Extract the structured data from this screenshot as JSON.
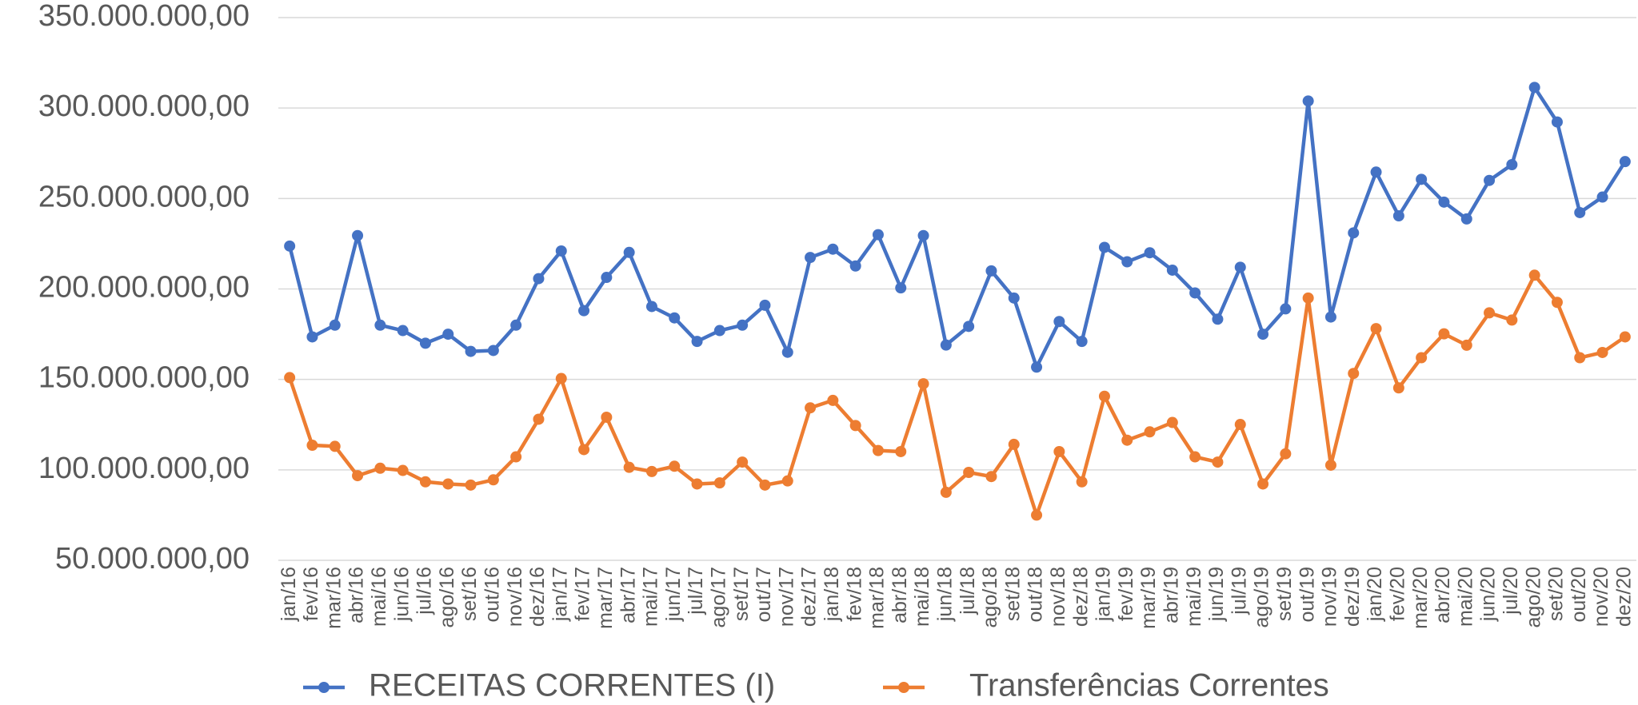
{
  "chart_data": {
    "type": "line",
    "categories": [
      "jan/16",
      "fev/16",
      "mar/16",
      "abr/16",
      "mai/16",
      "jun/16",
      "jul/16",
      "ago/16",
      "set/16",
      "out/16",
      "nov/16",
      "dez/16",
      "jan/17",
      "fev/17",
      "mar/17",
      "abr/17",
      "mai/17",
      "jun/17",
      "jul/17",
      "ago/17",
      "set/17",
      "out/17",
      "nov/17",
      "dez/17",
      "jan/18",
      "fev/18",
      "mar/18",
      "abr/18",
      "mai/18",
      "jun/18",
      "jul/18",
      "ago/18",
      "set/18",
      "out/18",
      "nov/18",
      "dez/18",
      "jan/19",
      "fev/19",
      "mar/19",
      "abr/19",
      "mai/19",
      "jun/19",
      "jul/19",
      "ago/19",
      "set/19",
      "out/19",
      "nov/19",
      "dez/19",
      "jan/20",
      "fev/20",
      "mar/20",
      "abr/20",
      "mai/20",
      "jun/20",
      "jul/20",
      "ago/20",
      "set/20",
      "out/20",
      "nov/20",
      "dez/20"
    ],
    "series": [
      {
        "name": "RECEITAS CORRENTES (I)",
        "color": "#4472c4",
        "values": [
          223700000,
          173500000,
          180000000,
          229500000,
          180000000,
          177000000,
          170000000,
          175000000,
          165500000,
          166000000,
          180000000,
          205700000,
          221000000,
          188000000,
          206400000,
          220200000,
          190300000,
          184000000,
          171000000,
          177000000,
          180000000,
          191000000,
          165000000,
          217400000,
          222000000,
          212700000,
          230000000,
          200600000,
          229500000,
          169000000,
          179300000,
          210000000,
          195000000,
          156800000,
          182000000,
          171000000,
          223000000,
          215000000,
          220000000,
          210400000,
          197800000,
          183300000,
          212000000,
          175000000,
          189000000,
          303900000,
          184500000,
          231000000,
          264600000,
          240400000,
          260600000,
          248000000,
          238700000,
          260000000,
          268700000,
          311400000,
          292300000,
          242200000,
          250800000,
          270400000
        ]
      },
      {
        "name": "Transferências Correntes",
        "color": "#ed7d31",
        "values": [
          151000000,
          113600000,
          113000000,
          96800000,
          100900000,
          99700000,
          93400000,
          92200000,
          91600000,
          94500000,
          107200000,
          128000000,
          150500000,
          111200000,
          129100000,
          101400000,
          99100000,
          102000000,
          92200000,
          92800000,
          104300000,
          91600000,
          93900000,
          134300000,
          138400000,
          124500000,
          110700000,
          110100000,
          147600000,
          87600000,
          98600000,
          96300000,
          114100000,
          75000000,
          110100000,
          93400000,
          140700000,
          116400000,
          121000000,
          126200000,
          107200000,
          104300000,
          125100000,
          92200000,
          108900000,
          195000000,
          102600000,
          153300000,
          178100000,
          145300000,
          162000000,
          175200000,
          168900000,
          186800000,
          182800000,
          207600000,
          192600000,
          162000000,
          164900000,
          173500000
        ]
      }
    ],
    "ylim": [
      50000000,
      350000000
    ],
    "yticks": [
      {
        "value": 50000000,
        "label": "50.000.000,00"
      },
      {
        "value": 100000000,
        "label": "100.000.000,00"
      },
      {
        "value": 150000000,
        "label": "150.000.000,00"
      },
      {
        "value": 200000000,
        "label": "200.000.000,00"
      },
      {
        "value": 250000000,
        "label": "250.000.000,00"
      },
      {
        "value": 300000000,
        "label": "300.000.000,00"
      },
      {
        "value": 350000000,
        "label": "350.000.000,00"
      }
    ],
    "grid": true,
    "legend": "bottom"
  }
}
